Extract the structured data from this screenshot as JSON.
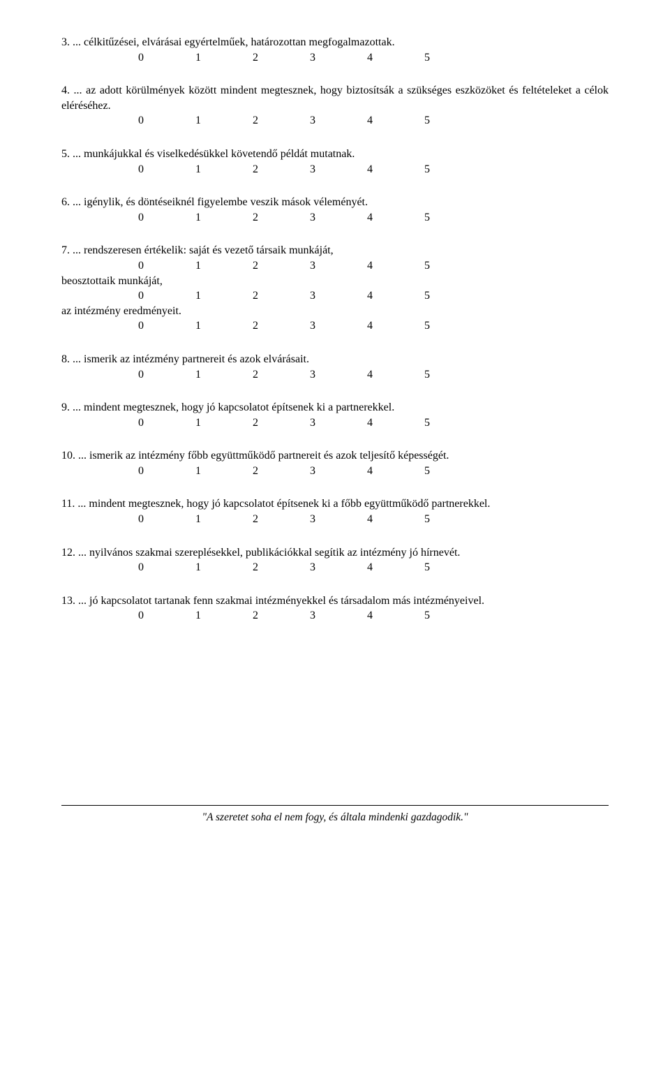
{
  "scale_values": [
    "0",
    "1",
    "2",
    "3",
    "4",
    "5"
  ],
  "questions": {
    "q3": {
      "text": "3. ... célkitűzései, elvárásai egyértelműek, határozottan megfogalmazottak."
    },
    "q4": {
      "text": "4. ... az adott körülmények között mindent megtesznek, hogy biztosítsák a szükséges eszközöket és feltételeket a célok eléréséhez."
    },
    "q5": {
      "text": "5. ... munkájukkal és viselkedésükkel követendő példát mutatnak."
    },
    "q6": {
      "text": "6. ... igénylik, és döntéseiknél figyelembe veszik mások véleményét."
    },
    "q7": {
      "text": "7. ... rendszeresen értékelik: saját és vezető társaik munkáját,",
      "sub1": "beosztottaik munkáját,",
      "sub2": "az intézmény eredményeit."
    },
    "q8": {
      "text": "8. ... ismerik az intézmény partnereit és azok elvárásait."
    },
    "q9": {
      "text": "9. ... mindent megtesznek, hogy jó kapcsolatot építsenek ki a partnerekkel."
    },
    "q10": {
      "text": "10. ... ismerik az intézmény főbb együttműködő partnereit és azok teljesítő képességét."
    },
    "q11": {
      "text": "11. ... mindent megtesznek, hogy jó kapcsolatot építsenek ki a főbb együttműködő partnerekkel."
    },
    "q12": {
      "text": "12. ... nyilvános szakmai szereplésekkel, publikációkkal segítik az intézmény jó hírnevét."
    },
    "q13": {
      "text": "13. ... jó kapcsolatot tartanak fenn szakmai intézményekkel és társadalom más intézményeivel."
    }
  },
  "footer": {
    "quote": "\"A szeretet soha el nem fogy, és általa mindenki gazdagodik.\""
  }
}
